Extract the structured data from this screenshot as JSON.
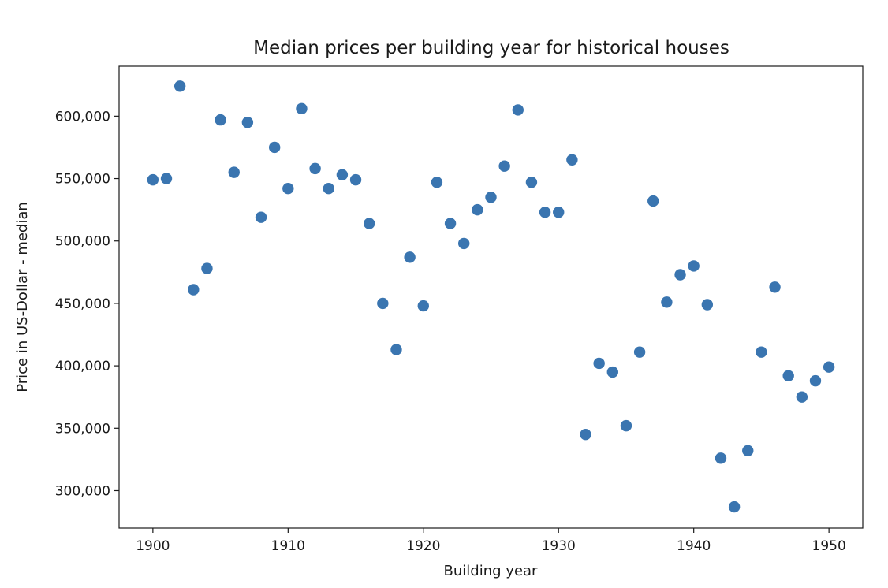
{
  "chart_data": {
    "type": "scatter",
    "title": "Median prices per building year for historical  houses",
    "xlabel": "Building year",
    "ylabel": "Price in US-Dollar - median",
    "xlim": [
      1897.5,
      1952.5
    ],
    "ylim": [
      270000,
      640000
    ],
    "xticks": [
      1900,
      1910,
      1920,
      1930,
      1940,
      1950
    ],
    "yticks": [
      300000,
      350000,
      400000,
      450000,
      500000,
      550000,
      600000
    ],
    "ytick_labels": [
      "300,000",
      "350,000",
      "400,000",
      "450,000",
      "500,000",
      "550,000",
      "600,000"
    ],
    "xtick_labels": [
      "1900",
      "1910",
      "1920",
      "1930",
      "1940",
      "1950"
    ],
    "grid": false,
    "marker_color": "#3a75b0",
    "x": [
      1900,
      1901,
      1902,
      1903,
      1904,
      1905,
      1906,
      1907,
      1908,
      1909,
      1910,
      1911,
      1912,
      1913,
      1914,
      1915,
      1916,
      1917,
      1918,
      1919,
      1920,
      1921,
      1922,
      1923,
      1924,
      1925,
      1926,
      1927,
      1928,
      1929,
      1930,
      1931,
      1932,
      1933,
      1934,
      1935,
      1936,
      1937,
      1938,
      1939,
      1940,
      1941,
      1942,
      1943,
      1944,
      1945,
      1946,
      1947,
      1948,
      1949,
      1950
    ],
    "y": [
      549000,
      550000,
      624000,
      461000,
      478000,
      597000,
      555000,
      595000,
      519000,
      575000,
      542000,
      606000,
      558000,
      542000,
      553000,
      549000,
      514000,
      450000,
      413000,
      487000,
      448000,
      547000,
      514000,
      498000,
      525000,
      535000,
      560000,
      605000,
      547000,
      523000,
      523000,
      565000,
      345000,
      402000,
      395000,
      352000,
      411000,
      532000,
      451000,
      473000,
      480000,
      449000,
      326000,
      287000,
      332000,
      411000,
      463000,
      392000,
      375000,
      388000,
      399000
    ]
  }
}
